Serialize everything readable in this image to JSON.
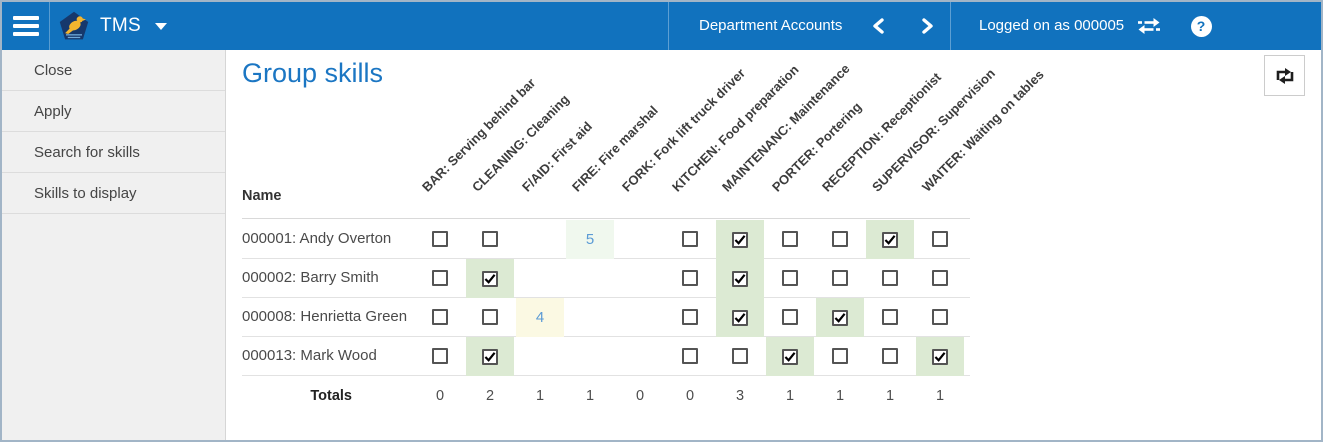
{
  "topbar": {
    "app_name": "TMS",
    "section_title": "Department Accounts",
    "logged_on_text": "Logged on as 000005",
    "help_glyph": "?",
    "icons": {
      "menu": "hamburger-icon",
      "logo": "bird-pentagon-logo-icon",
      "app_dropdown": "caret-down-icon",
      "prev": "chevron-left-icon",
      "next": "chevron-right-icon",
      "switch": "swap-arrows-icon",
      "help": "help-icon"
    }
  },
  "sidebar": {
    "items": [
      "Close",
      "Apply",
      "Search for skills",
      "Skills to display"
    ]
  },
  "main": {
    "title": "Group skills",
    "refresh_icon": "refresh-loop-icon"
  },
  "table": {
    "name_header": "Name",
    "totals_label": "Totals",
    "skills": [
      "BAR: Serving behind bar",
      "CLEANING: Cleaning",
      "F/AID: First aid",
      "FIRE: Fire marshal",
      "FORK: Fork lift truck driver",
      "KITCHEN: Food preparation",
      "MAINTENANC: Maintenance",
      "PORTER: Portering",
      "RECEPTION: Receptionist",
      "SUPERVISOR: Supervision",
      "WAITER: Waiting on tables"
    ],
    "rows": [
      {
        "name": "000001: Andy Overton",
        "cells": [
          "unchecked",
          "unchecked",
          "empty",
          {
            "value": "5",
            "style": "mint"
          },
          "empty",
          "unchecked",
          "checked",
          "unchecked",
          "unchecked",
          "checked",
          "unchecked"
        ]
      },
      {
        "name": "000002: Barry Smith",
        "cells": [
          "unchecked",
          "checked",
          "empty",
          "empty",
          "empty",
          "unchecked",
          "checked",
          "unchecked",
          "unchecked",
          "unchecked",
          "unchecked"
        ]
      },
      {
        "name": "000008: Henrietta Green",
        "cells": [
          "unchecked",
          "unchecked",
          {
            "value": "4",
            "style": "lemon"
          },
          "empty",
          "empty",
          "unchecked",
          "checked",
          "unchecked",
          "checked",
          "unchecked",
          "unchecked"
        ]
      },
      {
        "name": "000013: Mark Wood",
        "cells": [
          "unchecked",
          "checked",
          "empty",
          "empty",
          "empty",
          "unchecked",
          "unchecked",
          "checked",
          "unchecked",
          "unchecked",
          "checked"
        ]
      }
    ],
    "totals": [
      "0",
      "2",
      "1",
      "1",
      "0",
      "0",
      "3",
      "1",
      "1",
      "1",
      "1"
    ]
  },
  "colors": {
    "header_blue": "#1172BE",
    "title_blue": "#1B76C3",
    "checked_cell_green": "#DCEAD3",
    "rating_cell_mint": "#F0F8EE",
    "rating_cell_lemon": "#FBF9E3",
    "rating_text_blue": "#5B9BD5"
  }
}
